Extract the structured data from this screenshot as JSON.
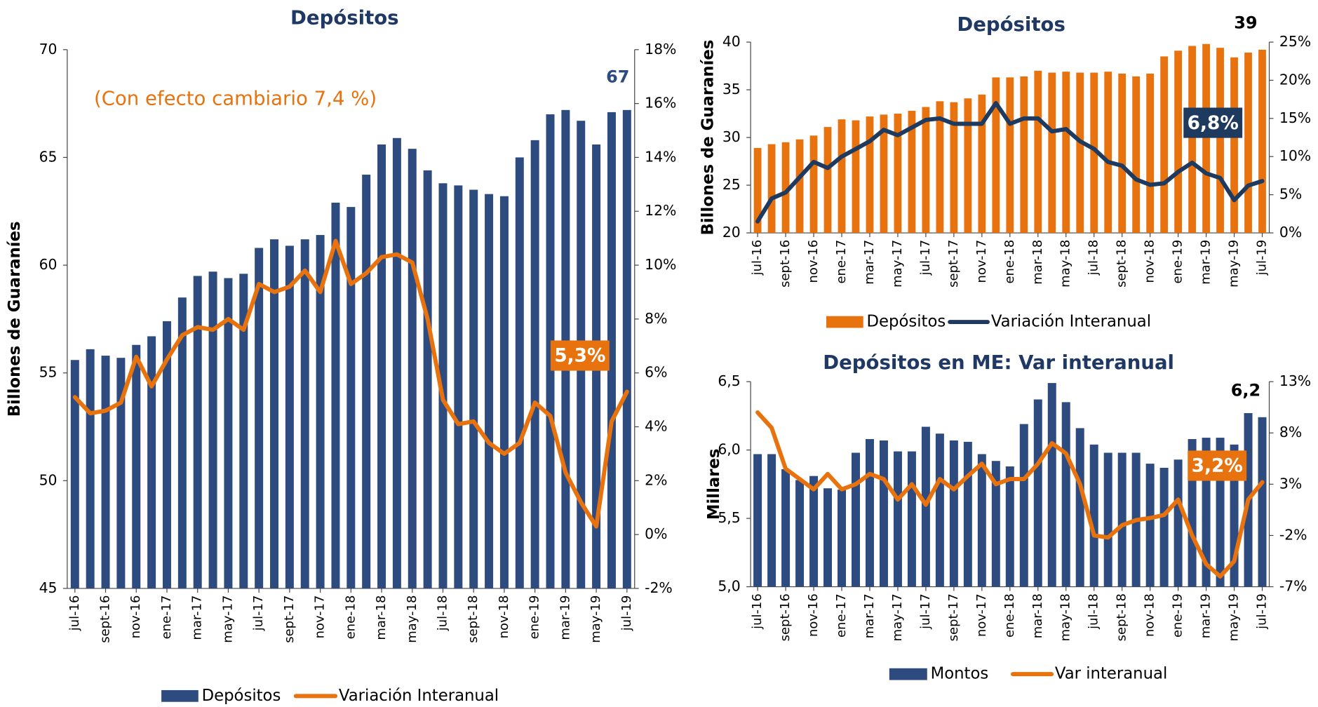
{
  "chart_data": [
    {
      "type": "combo",
      "title": "Depósitos",
      "y_label": "Billones de Guaraníes",
      "annotations": [
        "67",
        "(Con efecto cambiario 7,4 %)",
        "5,3%"
      ],
      "categories": [
        "jul-16",
        null,
        "sept-16",
        null,
        "nov-16",
        null,
        "ene-17",
        null,
        "mar-17",
        null,
        "may-17",
        null,
        "jul-17",
        null,
        "sept-17",
        null,
        "nov-17",
        null,
        "ene-18",
        null,
        "mar-18",
        null,
        "may-18",
        null,
        "jul-18",
        null,
        "sept-18",
        null,
        "nov-18",
        null,
        "ene-19",
        null,
        "mar-19",
        null,
        "may-19",
        null,
        "jul-19"
      ],
      "series": [
        {
          "name": "Depósitos",
          "type": "bar",
          "color": "#2e4b7f",
          "values": [
            55.6,
            56.1,
            55.8,
            55.7,
            56.3,
            56.7,
            57.4,
            58.5,
            59.5,
            59.7,
            59.4,
            59.6,
            60.8,
            61.2,
            60.9,
            61.2,
            61.4,
            62.9,
            62.7,
            64.2,
            65.6,
            65.9,
            65.4,
            64.4,
            63.8,
            63.7,
            63.5,
            63.3,
            63.2,
            65.0,
            65.8,
            67.0,
            67.2,
            66.7,
            65.6,
            67.1,
            67.2
          ]
        },
        {
          "name": "Variación Interanual",
          "type": "line",
          "axis": "y2",
          "color": "#e8730e",
          "values": [
            5.1,
            4.5,
            4.6,
            4.9,
            6.6,
            5.5,
            6.5,
            7.4,
            7.7,
            7.6,
            8.0,
            7.6,
            9.3,
            9.0,
            9.2,
            9.8,
            9.0,
            10.9,
            9.3,
            9.7,
            10.3,
            10.4,
            10.1,
            8.0,
            5.0,
            4.1,
            4.2,
            3.4,
            3.0,
            3.4,
            4.9,
            4.4,
            2.3,
            1.2,
            0.3,
            4.2,
            5.3
          ]
        }
      ],
      "ylim": [
        45,
        70
      ],
      "yticks": [
        45,
        50,
        55,
        60,
        65,
        70
      ],
      "y2lim": [
        -2,
        18
      ],
      "y2ticks": [
        {
          "value": -2,
          "label": "-2%"
        },
        {
          "value": 0,
          "label": "0%"
        },
        {
          "value": 2,
          "label": "2%"
        },
        {
          "value": 4,
          "label": "4%"
        },
        {
          "value": 6,
          "label": "6%"
        },
        {
          "value": 8,
          "label": "8%"
        },
        {
          "value": 10,
          "label": "10%"
        },
        {
          "value": 12,
          "label": "12%"
        },
        {
          "value": 14,
          "label": "14%"
        },
        {
          "value": 16,
          "label": "16%"
        },
        {
          "value": 18,
          "label": "18%"
        }
      ],
      "legend": "bottom"
    },
    {
      "type": "combo",
      "title": "Depósitos",
      "y_label": "Billones de Guaraníes",
      "annotations": [
        "39",
        "6,8%"
      ],
      "categories": [
        "jul-16",
        null,
        "sept-16",
        null,
        "nov-16",
        null,
        "ene-17",
        null,
        "mar-17",
        null,
        "may-17",
        null,
        "jul-17",
        null,
        "sept-17",
        null,
        "nov-17",
        null,
        "ene-18",
        null,
        "mar-18",
        null,
        "may-18",
        null,
        "jul-18",
        null,
        "sept-18",
        null,
        "nov-18",
        null,
        "ene-19",
        null,
        "mar-19",
        null,
        "may-19",
        null,
        "jul-19"
      ],
      "series": [
        {
          "name": "Depósitos",
          "type": "bar",
          "color": "#e8730e",
          "values": [
            28.9,
            29.3,
            29.5,
            29.8,
            30.2,
            31.1,
            31.9,
            31.8,
            32.2,
            32.4,
            32.5,
            32.8,
            33.2,
            33.8,
            33.7,
            34.1,
            34.5,
            36.3,
            36.3,
            36.4,
            37.0,
            36.8,
            36.9,
            36.8,
            36.8,
            36.9,
            36.7,
            36.4,
            36.7,
            38.5,
            39.1,
            39.6,
            39.8,
            39.4,
            38.4,
            38.9,
            39.2
          ]
        },
        {
          "name": "Variación Interanual",
          "type": "line",
          "axis": "y2",
          "color": "#1f3a5f",
          "values": [
            1.5,
            4.5,
            5.3,
            7.3,
            9.3,
            8.5,
            10.0,
            11.0,
            12.0,
            13.5,
            12.8,
            13.8,
            14.8,
            15.0,
            14.3,
            14.3,
            14.3,
            17.0,
            14.3,
            15.0,
            15.0,
            13.3,
            13.6,
            12.0,
            11.0,
            9.3,
            8.8,
            7.0,
            6.3,
            6.5,
            8.0,
            9.2,
            7.8,
            7.2,
            4.3,
            6.2,
            6.8
          ]
        }
      ],
      "ylim": [
        20,
        40
      ],
      "yticks": [
        20,
        25,
        30,
        35,
        40
      ],
      "y2lim": [
        0,
        25
      ],
      "y2ticks": [
        {
          "value": 0,
          "label": "0%"
        },
        {
          "value": 5,
          "label": "5%"
        },
        {
          "value": 10,
          "label": "10%"
        },
        {
          "value": 15,
          "label": "15%"
        },
        {
          "value": 20,
          "label": "20%"
        },
        {
          "value": 25,
          "label": "25%"
        }
      ],
      "legend": "bottom"
    },
    {
      "type": "combo",
      "title": "Depósitos en ME: Var interanual",
      "y_label": "Millares",
      "annotations": [
        "6,2",
        "3,2%"
      ],
      "categories": [
        "jul-16",
        null,
        "sept-16",
        null,
        "nov-16",
        null,
        "ene-17",
        null,
        "mar-17",
        null,
        "may-17",
        null,
        "jul-17",
        null,
        "sept-17",
        null,
        "nov-17",
        null,
        "ene-18",
        null,
        "mar-18",
        null,
        "may-18",
        null,
        "jul-18",
        null,
        "sept-18",
        null,
        "nov-18",
        null,
        "ene-19",
        null,
        "mar-19",
        null,
        "may-19",
        null,
        "jul-19"
      ],
      "series": [
        {
          "name": "Montos",
          "type": "bar",
          "color": "#2e4b7f",
          "values": [
            5.97,
            5.97,
            5.86,
            5.78,
            5.81,
            5.72,
            5.71,
            5.98,
            6.08,
            6.07,
            5.99,
            5.99,
            6.17,
            6.12,
            6.07,
            6.06,
            5.97,
            5.92,
            5.88,
            6.19,
            6.37,
            6.49,
            6.35,
            6.16,
            6.04,
            5.98,
            5.98,
            5.98,
            5.9,
            5.87,
            5.93,
            6.08,
            6.09,
            6.09,
            6.04,
            6.27,
            6.24
          ]
        },
        {
          "name": "Var interanual",
          "type": "line",
          "axis": "y2",
          "color": "#e8730e",
          "values": [
            10,
            8.5,
            4.5,
            3.5,
            2.5,
            4,
            2.5,
            3,
            4,
            3.5,
            1.5,
            3,
            1,
            3.5,
            2.5,
            3.8,
            5,
            3,
            3.5,
            3.5,
            5,
            7,
            6,
            3,
            -2,
            -2.2,
            -1,
            -0.5,
            -0.3,
            0,
            1.5,
            -2,
            -4.8,
            -6,
            -4.5,
            1.5,
            3.2
          ]
        }
      ],
      "ylim": [
        5.0,
        6.5
      ],
      "yticks": [
        {
          "value": 5.0,
          "label": "5,0"
        },
        {
          "value": 5.5,
          "label": "5,5"
        },
        {
          "value": 6.0,
          "label": "6,0"
        },
        {
          "value": 6.5,
          "label": "6,5"
        }
      ],
      "y2lim": [
        -7,
        13
      ],
      "y2ticks": [
        {
          "value": -7,
          "label": "-7%"
        },
        {
          "value": -2,
          "label": "-2%"
        },
        {
          "value": 3,
          "label": "3%"
        },
        {
          "value": 8,
          "label": "8%"
        },
        {
          "value": 13,
          "label": "13%"
        }
      ],
      "legend": "bottom"
    }
  ]
}
